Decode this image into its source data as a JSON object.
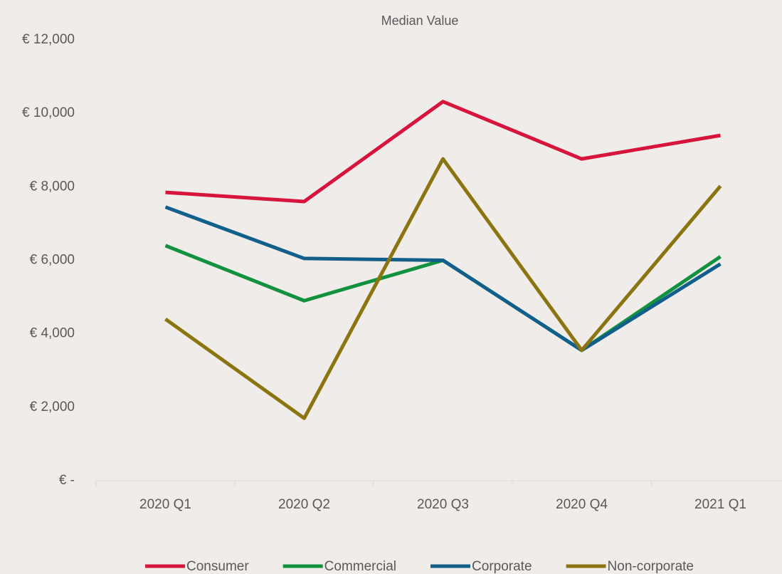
{
  "chart_data": {
    "type": "line",
    "title": "Median Value",
    "categories": [
      "2020 Q1",
      "2020 Q2",
      "2020 Q3",
      "2020 Q4",
      "2021 Q1"
    ],
    "series": [
      {
        "name": "Consumer",
        "color": "#d7143c",
        "values": [
          7850,
          7600,
          10320,
          8760,
          9400
        ]
      },
      {
        "name": "Commercial",
        "color": "#12923e",
        "values": [
          6400,
          4900,
          6000,
          3550,
          6100
        ]
      },
      {
        "name": "Corporate",
        "color": "#135f8c",
        "values": [
          7450,
          6050,
          6000,
          3550,
          5900
        ]
      },
      {
        "name": "Non-corporate",
        "color": "#8b7511",
        "values": [
          4400,
          1700,
          8760,
          3550,
          8020
        ]
      }
    ],
    "ylim": [
      0,
      12000
    ],
    "yticks": [
      {
        "value": 0,
        "label": "€ -"
      },
      {
        "value": 2000,
        "label": "€ 2,000"
      },
      {
        "value": 4000,
        "label": "€ 4,000"
      },
      {
        "value": 6000,
        "label": "€ 6,000"
      },
      {
        "value": 8000,
        "label": "€ 8,000"
      },
      {
        "value": 10000,
        "label": "€ 10,000"
      },
      {
        "value": 12000,
        "label": "€ 12,000"
      }
    ],
    "grid": false,
    "legend": "bottom"
  }
}
